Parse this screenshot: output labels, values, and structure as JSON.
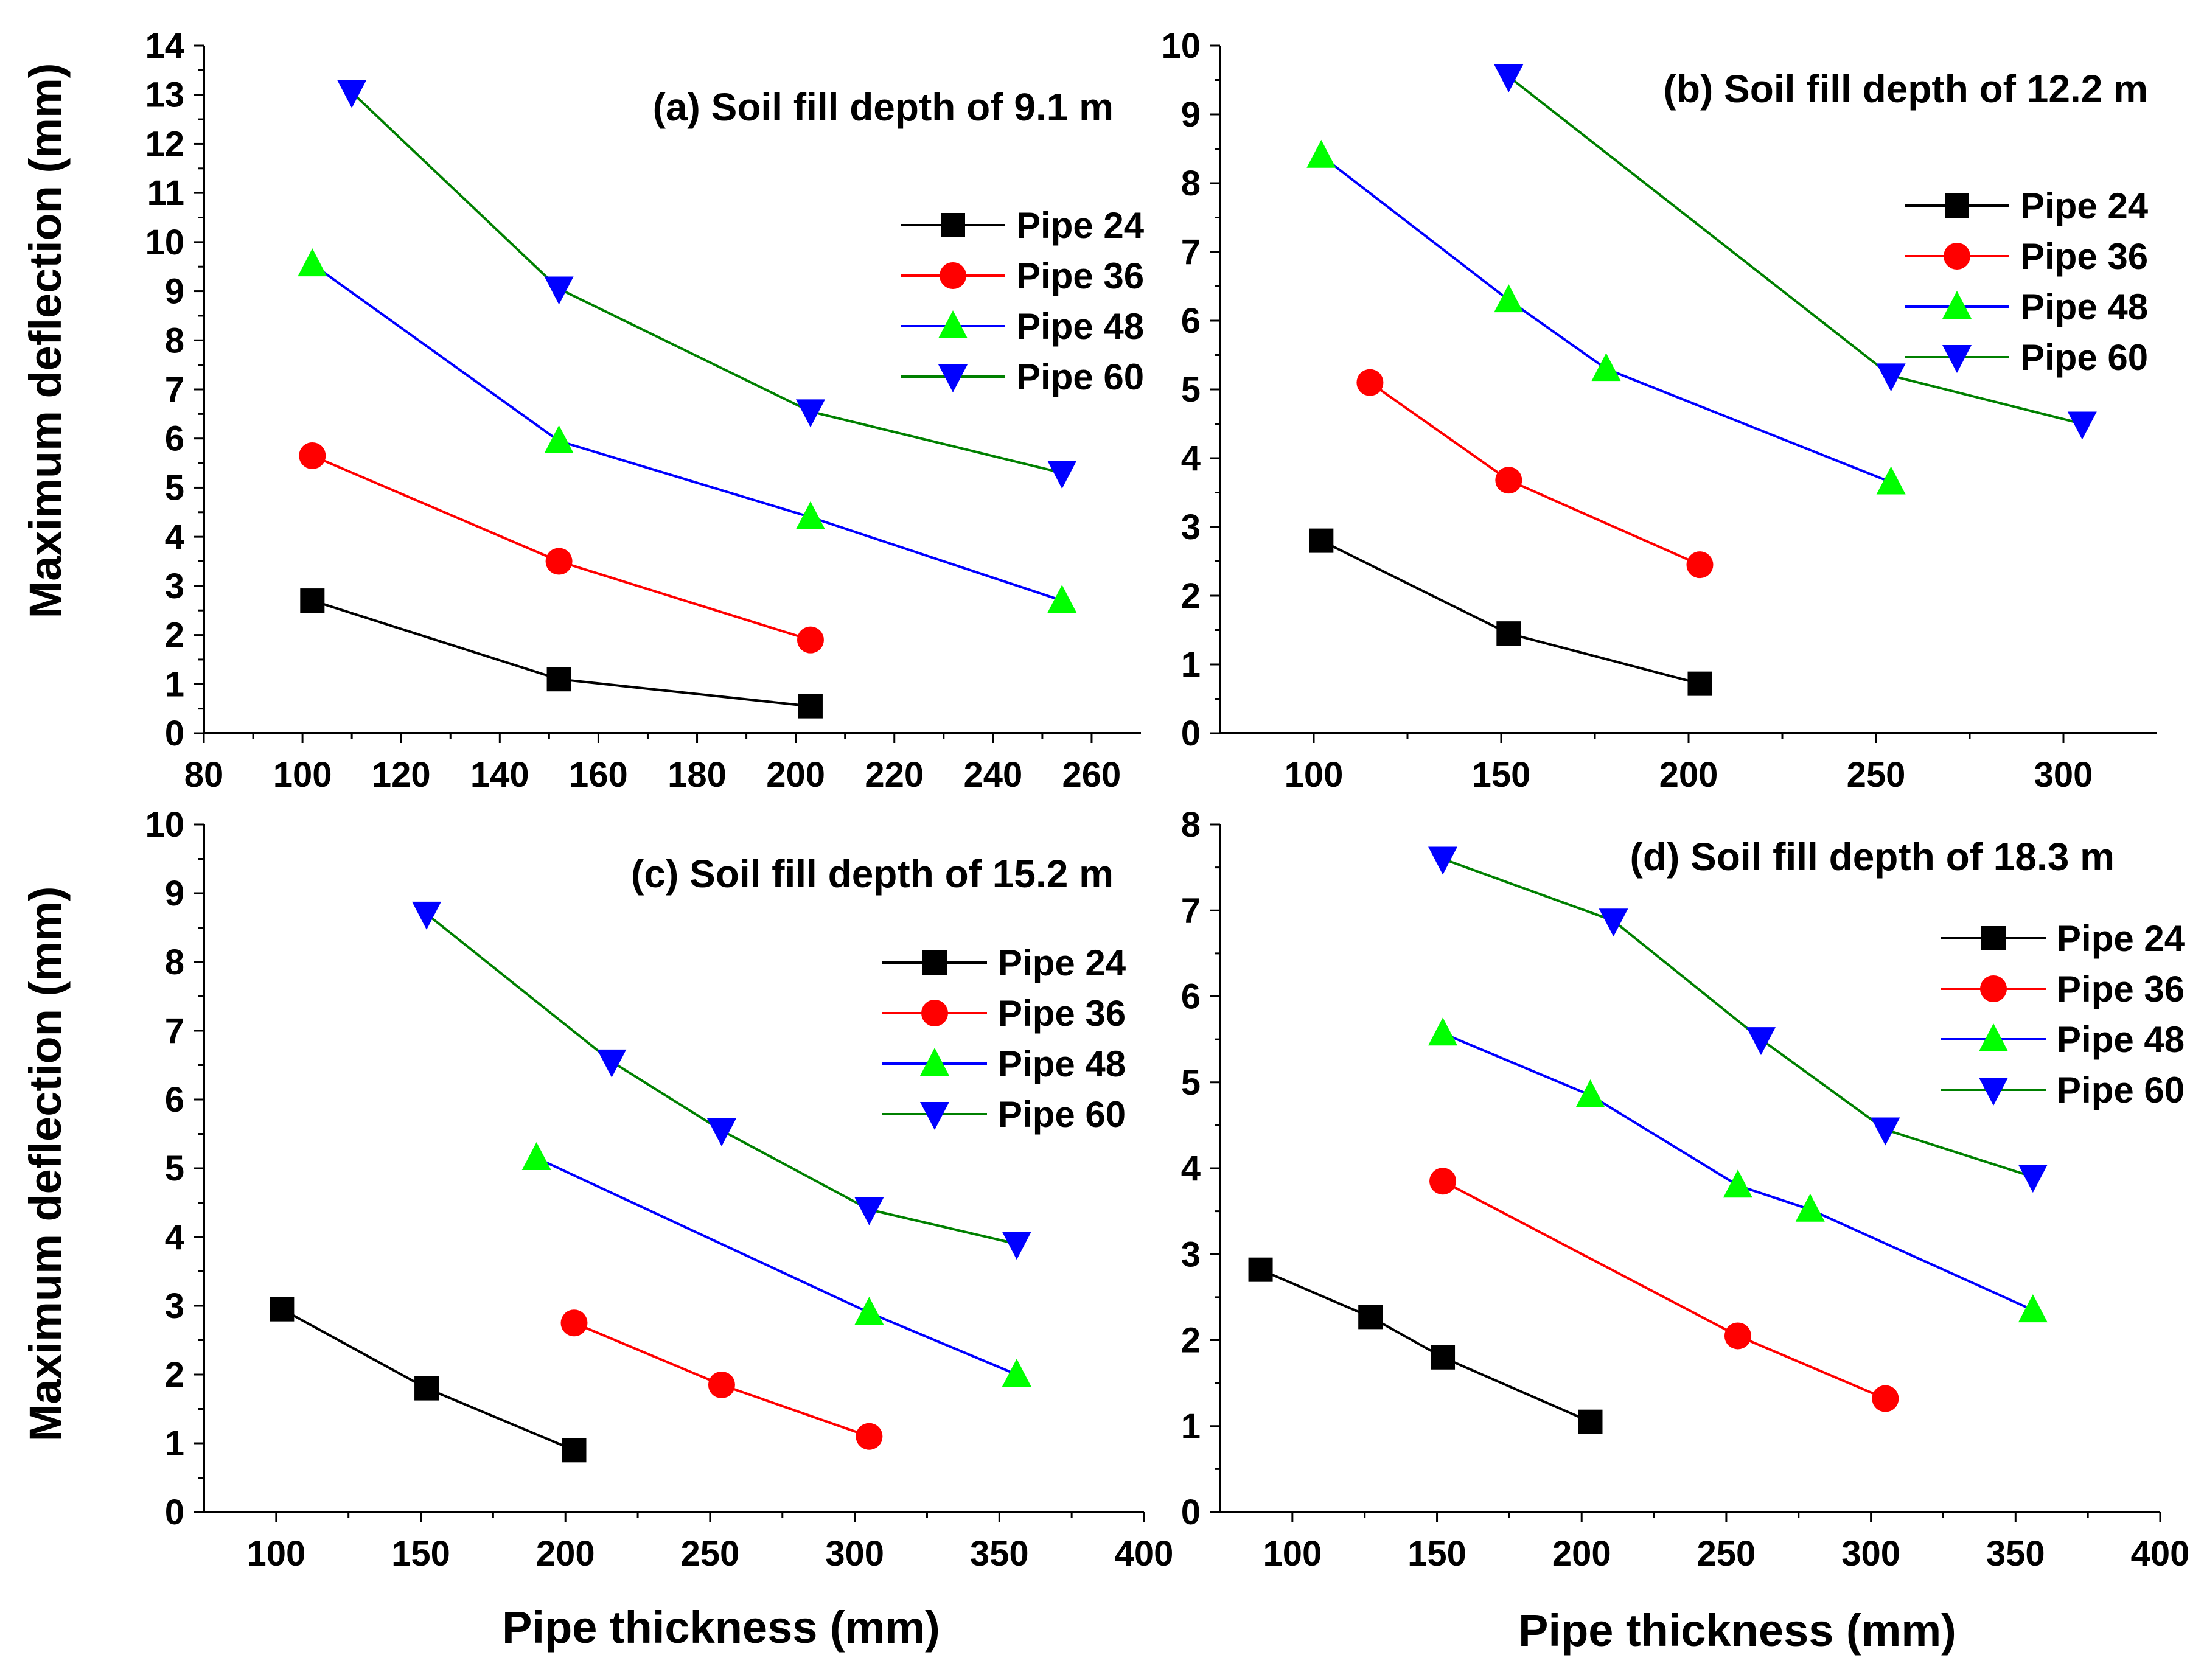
{
  "figure": {
    "ylabel": "Maximum deflection (mm)",
    "xlabel": "Pipe thickness (mm)"
  },
  "colors": {
    "Pipe 24": "#000000",
    "Pipe 36": "#ff0000",
    "Pipe 48": "#0000ff",
    "Pipe 60": "#008000"
  },
  "marker_fills": {
    "Pipe 24": "#000000",
    "Pipe 36": "#ff0000",
    "Pipe 48": "#00ff00",
    "Pipe 60": "#0000ff"
  },
  "markers": {
    "Pipe 24": "square",
    "Pipe 36": "circle",
    "Pipe 48": "triangle-up",
    "Pipe 60": "triangle-down"
  },
  "chart_data": [
    {
      "type": "line",
      "title": "(a) Soil fill depth of 9.1 m",
      "xlabel": "",
      "ylabel": "Maximum deflection (mm)",
      "xlim": [
        80,
        270
      ],
      "ylim": [
        0,
        14
      ],
      "xticks": [
        80,
        100,
        120,
        140,
        160,
        180,
        200,
        220,
        240,
        260
      ],
      "yticks": [
        0,
        1,
        2,
        3,
        4,
        5,
        6,
        7,
        8,
        9,
        10,
        11,
        12,
        13,
        14
      ],
      "legend": "right",
      "series": [
        {
          "name": "Pipe 24",
          "x": [
            102,
            152,
            203
          ],
          "y": [
            2.7,
            1.1,
            0.55
          ]
        },
        {
          "name": "Pipe 36",
          "x": [
            102,
            152,
            203
          ],
          "y": [
            5.65,
            3.5,
            1.9
          ]
        },
        {
          "name": "Pipe 48",
          "x": [
            102,
            152,
            203,
            254
          ],
          "y": [
            9.55,
            5.95,
            4.4,
            2.7
          ]
        },
        {
          "name": "Pipe 60",
          "x": [
            110,
            152,
            203,
            254
          ],
          "y": [
            13.05,
            9.05,
            6.55,
            5.3
          ]
        }
      ]
    },
    {
      "type": "line",
      "title": "(b) Soil fill depth of 12.2 m",
      "xlabel": "",
      "ylabel": "",
      "xlim": [
        75,
        325
      ],
      "ylim": [
        0,
        10
      ],
      "xticks": [
        100,
        150,
        200,
        250,
        300
      ],
      "yticks": [
        0,
        1,
        2,
        3,
        4,
        5,
        6,
        7,
        8,
        9,
        10
      ],
      "legend": "right",
      "series": [
        {
          "name": "Pipe 24",
          "x": [
            102,
            152,
            203
          ],
          "y": [
            2.8,
            1.45,
            0.72
          ]
        },
        {
          "name": "Pipe 36",
          "x": [
            115,
            152,
            203
          ],
          "y": [
            5.1,
            3.68,
            2.45
          ]
        },
        {
          "name": "Pipe 48",
          "x": [
            102,
            152,
            178,
            254
          ],
          "y": [
            8.4,
            6.3,
            5.3,
            3.65
          ]
        },
        {
          "name": "Pipe 60",
          "x": [
            152,
            254,
            305
          ],
          "y": [
            9.55,
            5.2,
            4.5
          ]
        }
      ]
    },
    {
      "type": "line",
      "title": "(c) Soil fill depth of 15.2 m",
      "xlabel": "Pipe thickness (mm)",
      "ylabel": "Maximum deflection (mm)",
      "xlim": [
        75,
        400
      ],
      "ylim": [
        0,
        10
      ],
      "xticks": [
        100,
        150,
        200,
        250,
        300,
        350,
        400
      ],
      "yticks": [
        0,
        1,
        2,
        3,
        4,
        5,
        6,
        7,
        8,
        9,
        10
      ],
      "legend": "right",
      "series": [
        {
          "name": "Pipe 24",
          "x": [
            102,
            152,
            203
          ],
          "y": [
            2.95,
            1.8,
            0.9
          ]
        },
        {
          "name": "Pipe 36",
          "x": [
            203,
            254,
            305
          ],
          "y": [
            2.75,
            1.85,
            1.1
          ]
        },
        {
          "name": "Pipe 48",
          "x": [
            190,
            305,
            356
          ],
          "y": [
            5.15,
            2.9,
            2.0
          ]
        },
        {
          "name": "Pipe 60",
          "x": [
            152,
            216,
            254,
            305,
            356
          ],
          "y": [
            8.7,
            6.55,
            5.55,
            4.4,
            3.9
          ]
        }
      ]
    },
    {
      "type": "line",
      "title": "(d) Soil fill depth of 18.3 m",
      "xlabel": "Pipe thickness (mm)",
      "ylabel": "",
      "xlim": [
        75,
        400
      ],
      "ylim": [
        0,
        8
      ],
      "xticks": [
        100,
        150,
        200,
        250,
        300,
        350,
        400
      ],
      "yticks": [
        0,
        1,
        2,
        3,
        4,
        5,
        6,
        7,
        8
      ],
      "legend": "right",
      "series": [
        {
          "name": "Pipe 24",
          "x": [
            89,
            127,
            152,
            203
          ],
          "y": [
            2.82,
            2.27,
            1.8,
            1.05
          ]
        },
        {
          "name": "Pipe 36",
          "x": [
            152,
            254,
            305
          ],
          "y": [
            3.85,
            2.05,
            1.32
          ]
        },
        {
          "name": "Pipe 48",
          "x": [
            152,
            203,
            254,
            279,
            356
          ],
          "y": [
            5.57,
            4.85,
            3.8,
            3.52,
            2.35
          ]
        },
        {
          "name": "Pipe 60",
          "x": [
            152,
            211,
            262,
            305,
            356
          ],
          "y": [
            7.6,
            6.88,
            5.5,
            4.45,
            3.9
          ]
        }
      ]
    }
  ]
}
